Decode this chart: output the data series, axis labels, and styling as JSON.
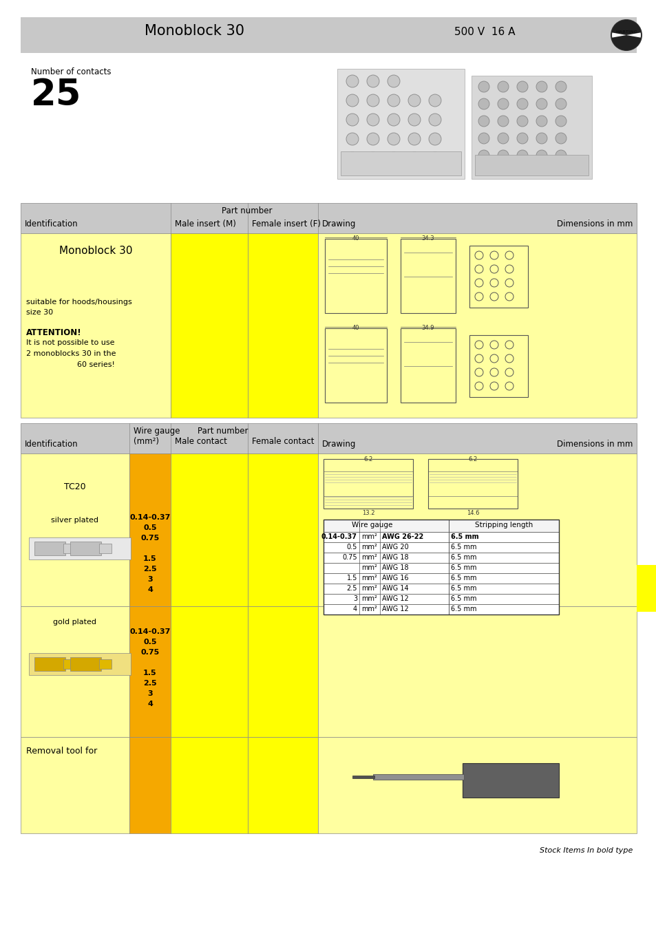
{
  "title": "Monoblock 30",
  "voltage": "500 V  16 A",
  "bg_color": "#ffffff",
  "header_bg": "#c8c8c8",
  "yellow_bg": "#ffff00",
  "light_yellow_bg": "#ffffa0",
  "orange_bg": "#f5a800",
  "table_header_bg": "#c8c8c8",
  "light_yellow2": "#ffffe8",
  "num_contacts_label": "Number of contacts",
  "num_contacts_value": "25",
  "wire_table_rows": [
    [
      "0.14-0.37",
      "mm²",
      "AWG 26-22",
      "6.5 mm"
    ],
    [
      "0.5",
      "mm²",
      "AWG 20",
      "6.5 mm"
    ],
    [
      "0.75",
      "mm²",
      "AWG 18",
      "6.5 mm"
    ],
    [
      "",
      "mm²",
      "AWG 18",
      "6.5 mm"
    ],
    [
      "1.5",
      "mm²",
      "AWG 16",
      "6.5 mm"
    ],
    [
      "2.5",
      "mm²",
      "AWG 14",
      "6.5 mm"
    ],
    [
      "3",
      "mm²",
      "AWG 12",
      "6.5 mm"
    ],
    [
      "4",
      "mm²",
      "AWG 12",
      "6.5 mm"
    ]
  ],
  "wire_gauge_values": [
    "0.14-0.37",
    "0.5",
    "0.75",
    "",
    "1.5",
    "2.5",
    "3",
    "4"
  ],
  "removal_tool_text": "Removal tool for",
  "stock_items_note": "Stock Items In bold type"
}
